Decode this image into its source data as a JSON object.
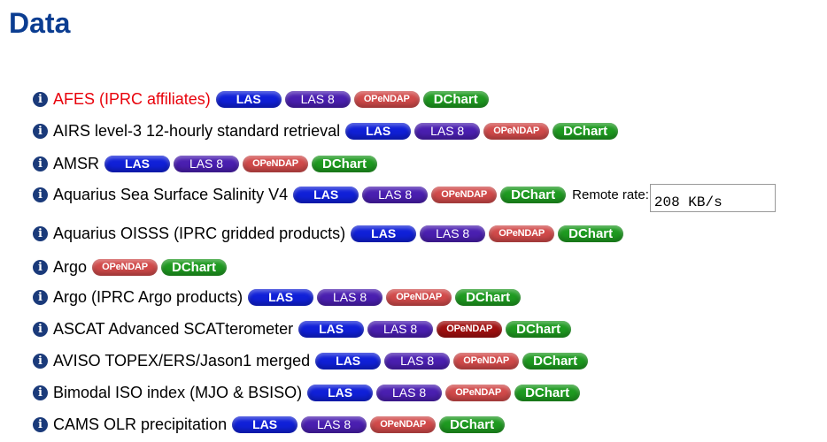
{
  "page": {
    "title": "Data"
  },
  "buttons": {
    "las": "LAS",
    "las8": "LAS 8",
    "opendap": "OPeNDAP",
    "dchart": "DChart"
  },
  "info_icon_glyph": "i",
  "remote": {
    "label": "Remote rate:",
    "value": "208 KB/s"
  },
  "rows": [
    {
      "name": "AFES (IPRC affiliates)",
      "highlight": true,
      "buttons": [
        "las",
        "las8",
        "opendap",
        "dchart"
      ]
    },
    {
      "name": "AIRS level-3 12-hourly standard retrieval",
      "buttons": [
        "las",
        "las8",
        "opendap",
        "dchart"
      ]
    },
    {
      "name": "AMSR",
      "buttons": [
        "las",
        "las8",
        "opendap",
        "dchart"
      ]
    },
    {
      "name": "Aquarius Sea Surface Salinity V4",
      "buttons": [
        "las",
        "las8",
        "opendap",
        "dchart"
      ],
      "remote": true
    },
    {
      "name": "Aquarius OISSS (IPRC gridded products)",
      "buttons": [
        "las",
        "las8",
        "opendap",
        "dchart"
      ]
    },
    {
      "name": "Argo",
      "buttons": [
        "opendap",
        "dchart"
      ]
    },
    {
      "name": "Argo (IPRC Argo products)",
      "buttons": [
        "las",
        "las8",
        "opendap",
        "dchart"
      ]
    },
    {
      "name": "ASCAT Advanced SCATterometer",
      "buttons": [
        "las",
        "las8",
        "opendap",
        "dchart"
      ],
      "opendap_dark": true
    },
    {
      "name": "AVISO TOPEX/ERS/Jason1 merged",
      "buttons": [
        "las",
        "las8",
        "opendap",
        "dchart"
      ]
    },
    {
      "name": "Bimodal ISO index (MJO & BSISO)",
      "buttons": [
        "las",
        "las8",
        "opendap",
        "dchart"
      ]
    },
    {
      "name": "CAMS OLR precipitation",
      "buttons": [
        "las",
        "las8",
        "opendap",
        "dchart"
      ]
    }
  ]
}
